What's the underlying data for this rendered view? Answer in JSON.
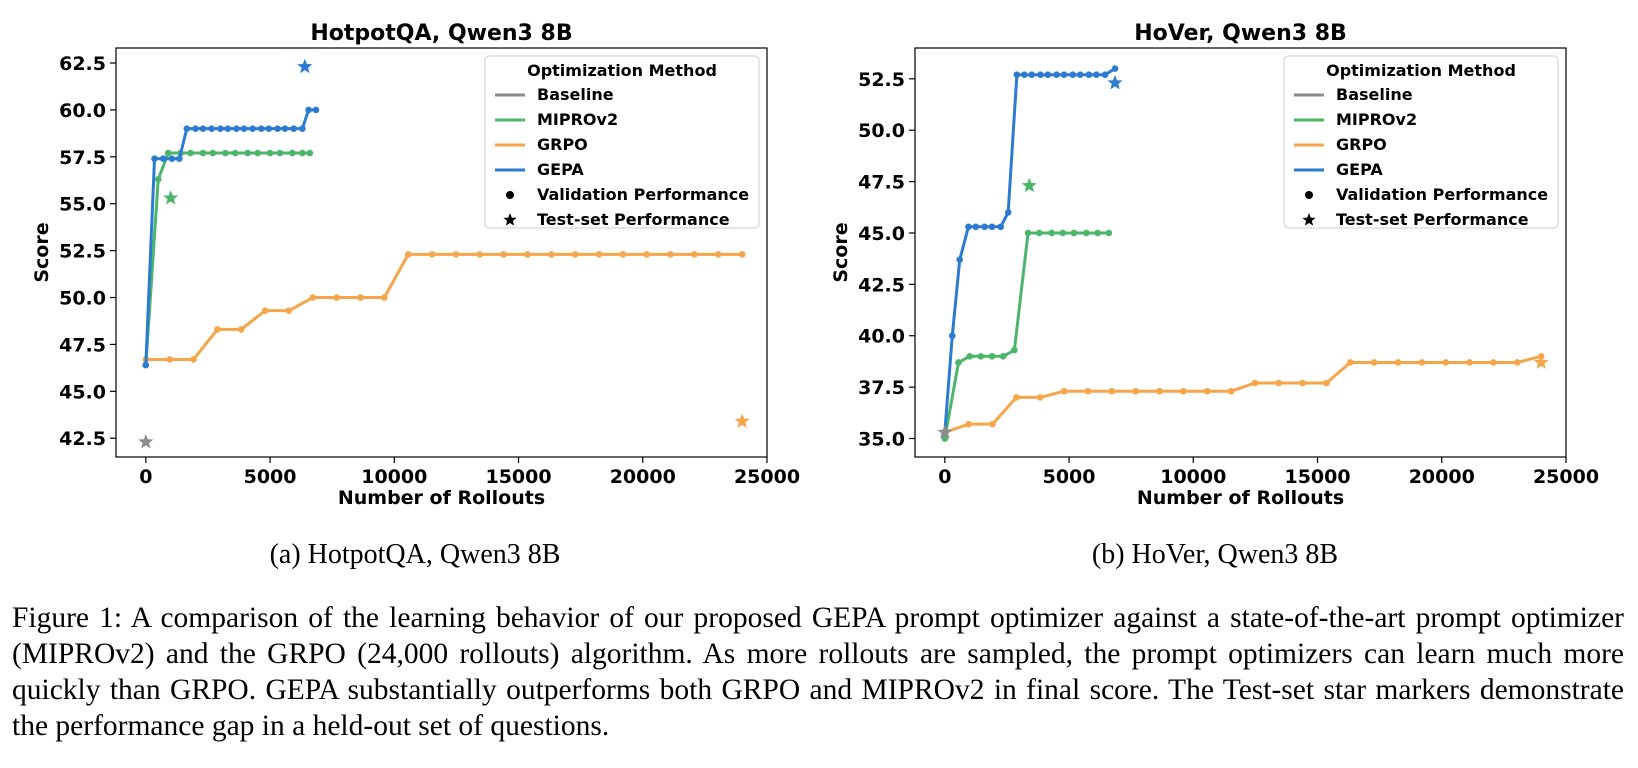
{
  "colors": {
    "baseline": "#8c8c8c",
    "mipro": "#4bb56a",
    "grpo": "#f5a54a",
    "gepa": "#2b7bd1"
  },
  "legend": {
    "title": "Optimization Method",
    "entries": [
      "Baseline",
      "MIPROv2",
      "GRPO",
      "GEPA",
      "Validation Performance",
      "Test-set Performance"
    ]
  },
  "subcaptions": [
    "(a) HotpotQA, Qwen3 8B",
    "(b) HoVer, Qwen3 8B"
  ],
  "caption": "Figure 1: A comparison of the learning behavior of our proposed GEPA prompt optimizer against a state-of-the-art prompt optimizer (MIPROv2) and the GRPO (24,000 rollouts) algorithm. As more rollouts are sampled, the prompt optimizers can learn much more quickly than GRPO. GEPA substantially outperforms both GRPO and MIPROv2 in final score. The Test-set star markers demonstrate the performance gap in a held-out set of questions.",
  "chart_data": [
    {
      "type": "line",
      "title": "HotpotQA, Qwen3 8B",
      "xlabel": "Number of Rollouts",
      "ylabel": "Score",
      "xlim": [
        -1200,
        25000
      ],
      "ylim": [
        41.5,
        63.3
      ],
      "xticks": [
        0,
        5000,
        10000,
        15000,
        20000,
        25000
      ],
      "yticks": [
        "42.5",
        "45.0",
        "47.5",
        "50.0",
        "52.5",
        "55.0",
        "57.5",
        "60.0",
        "62.5"
      ],
      "legend_position": "top-right",
      "series": [
        {
          "name": "MIPROv2",
          "color_key": "mipro",
          "x": [
            0,
            500,
            900,
            1400,
            1800,
            2300,
            2700,
            3200,
            3600,
            4100,
            4500,
            5000,
            5400,
            5900,
            6300,
            6600
          ],
          "y": [
            46.4,
            56.3,
            57.7,
            57.7,
            57.7,
            57.7,
            57.7,
            57.7,
            57.7,
            57.7,
            57.7,
            57.7,
            57.7,
            57.7,
            57.7,
            57.7
          ]
        },
        {
          "name": "GEPA",
          "color_key": "gepa",
          "x": [
            0,
            350,
            700,
            1050,
            1350,
            1650,
            2000,
            2300,
            2650,
            3000,
            3300,
            3650,
            3950,
            4300,
            4650,
            4950,
            5300,
            5600,
            5950,
            6300,
            6550,
            6850
          ],
          "y": [
            46.4,
            57.4,
            57.4,
            57.4,
            57.4,
            59.0,
            59.0,
            59.0,
            59.0,
            59.0,
            59.0,
            59.0,
            59.0,
            59.0,
            59.0,
            59.0,
            59.0,
            59.0,
            59.0,
            59.0,
            60.0,
            60.0
          ]
        },
        {
          "name": "GRPO",
          "color_key": "grpo",
          "x": [
            0,
            960,
            1920,
            2880,
            3840,
            4800,
            5760,
            6720,
            7680,
            8640,
            9600,
            10560,
            11520,
            12480,
            13440,
            14400,
            15360,
            16320,
            17280,
            18240,
            19200,
            20160,
            21120,
            22080,
            23040,
            24000
          ],
          "y": [
            46.7,
            46.7,
            46.7,
            48.3,
            48.3,
            49.3,
            49.3,
            50.0,
            50.0,
            50.0,
            50.0,
            52.3,
            52.3,
            52.3,
            52.3,
            52.3,
            52.3,
            52.3,
            52.3,
            52.3,
            52.3,
            52.3,
            52.3,
            52.3,
            52.3,
            52.3
          ]
        }
      ],
      "test_points": [
        {
          "name": "Baseline",
          "color_key": "baseline",
          "x": 0,
          "y": 42.3
        },
        {
          "name": "MIPROv2",
          "color_key": "mipro",
          "x": 1000,
          "y": 55.3
        },
        {
          "name": "GRPO",
          "color_key": "grpo",
          "x": 24000,
          "y": 43.4
        },
        {
          "name": "GEPA",
          "color_key": "gepa",
          "x": 6400,
          "y": 62.3
        }
      ]
    },
    {
      "type": "line",
      "title": "HoVer, Qwen3 8B",
      "xlabel": "Number of Rollouts",
      "ylabel": "Score",
      "xlim": [
        -1200,
        25000
      ],
      "ylim": [
        34.1,
        54.0
      ],
      "xticks": [
        0,
        5000,
        10000,
        15000,
        20000,
        25000
      ],
      "yticks": [
        "35.0",
        "37.5",
        "40.0",
        "42.5",
        "45.0",
        "47.5",
        "50.0",
        "52.5"
      ],
      "legend_position": "top-right",
      "series": [
        {
          "name": "MIPROv2",
          "color_key": "mipro",
          "x": [
            0,
            550,
            1000,
            1450,
            1900,
            2350,
            2800,
            3350,
            3800,
            4300,
            4750,
            5200,
            5700,
            6150,
            6600
          ],
          "y": [
            35.0,
            38.7,
            39.0,
            39.0,
            39.0,
            39.0,
            39.3,
            45.0,
            45.0,
            45.0,
            45.0,
            45.0,
            45.0,
            45.0,
            45.0
          ]
        },
        {
          "name": "GEPA",
          "color_key": "gepa",
          "x": [
            0,
            300,
            600,
            950,
            1250,
            1600,
            1900,
            2250,
            2550,
            2900,
            3200,
            3500,
            3850,
            4150,
            4500,
            4800,
            5150,
            5450,
            5800,
            6100,
            6450,
            6850
          ],
          "y": [
            35.3,
            40.0,
            43.7,
            45.3,
            45.3,
            45.3,
            45.3,
            45.3,
            46.0,
            52.7,
            52.7,
            52.7,
            52.7,
            52.7,
            52.7,
            52.7,
            52.7,
            52.7,
            52.7,
            52.7,
            52.7,
            53.0
          ]
        },
        {
          "name": "GRPO",
          "color_key": "grpo",
          "x": [
            0,
            960,
            1920,
            2880,
            3840,
            4800,
            5760,
            6720,
            7680,
            8640,
            9600,
            10560,
            11520,
            12480,
            13440,
            14400,
            15360,
            16320,
            17280,
            18240,
            19200,
            20160,
            21120,
            22080,
            23040,
            24000
          ],
          "y": [
            35.3,
            35.7,
            35.7,
            37.0,
            37.0,
            37.3,
            37.3,
            37.3,
            37.3,
            37.3,
            37.3,
            37.3,
            37.3,
            37.7,
            37.7,
            37.7,
            37.7,
            38.7,
            38.7,
            38.7,
            38.7,
            38.7,
            38.7,
            38.7,
            38.7,
            39.0
          ]
        }
      ],
      "test_points": [
        {
          "name": "Baseline",
          "color_key": "baseline",
          "x": 0,
          "y": 35.3
        },
        {
          "name": "MIPROv2",
          "color_key": "mipro",
          "x": 3400,
          "y": 47.3
        },
        {
          "name": "GRPO",
          "color_key": "grpo",
          "x": 24000,
          "y": 38.7
        },
        {
          "name": "GEPA",
          "color_key": "gepa",
          "x": 6850,
          "y": 52.3
        }
      ]
    }
  ]
}
